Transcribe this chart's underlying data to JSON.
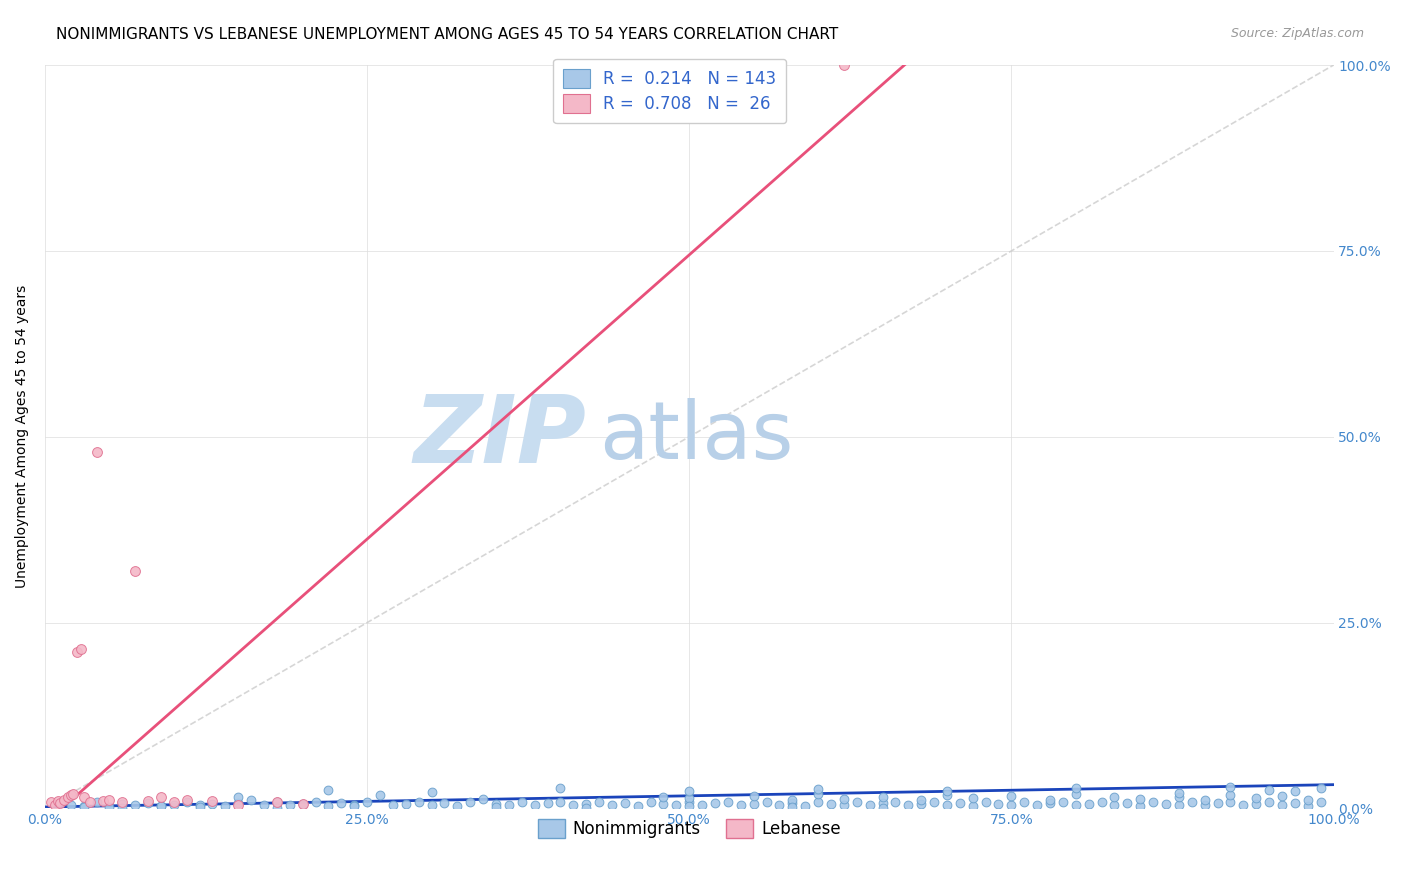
{
  "title": "NONIMMIGRANTS VS LEBANESE UNEMPLOYMENT AMONG AGES 45 TO 54 YEARS CORRELATION CHART",
  "source": "Source: ZipAtlas.com",
  "ylabel": "Unemployment Among Ages 45 to 54 years",
  "xlim": [
    0,
    1.0
  ],
  "ylim": [
    0,
    1.0
  ],
  "xtick_labels": [
    "0.0%",
    "25.0%",
    "50.0%",
    "75.0%",
    "100.0%"
  ],
  "xtick_positions": [
    0.0,
    0.25,
    0.5,
    0.75,
    1.0
  ],
  "ytick_labels_right": [
    "0.0%",
    "25.0%",
    "50.0%",
    "75.0%",
    "100.0%"
  ],
  "ytick_positions": [
    0.0,
    0.25,
    0.5,
    0.75,
    1.0
  ],
  "nonimmigrant_color": "#a8c8e8",
  "nonimmigrant_edge_color": "#6aa0cc",
  "lebanese_color": "#f4b8c8",
  "lebanese_edge_color": "#e07090",
  "nonimmigrant_R": 0.214,
  "nonimmigrant_N": 143,
  "lebanese_R": 0.708,
  "lebanese_N": 26,
  "nonimmigrant_line_color": "#1a44bb",
  "lebanese_line_color": "#e8507a",
  "diagonal_line_color": "#cccccc",
  "legend_label_nonimmigrant": "Nonimmigrants",
  "legend_label_lebanese": "Lebanese",
  "watermark_zip": "ZIP",
  "watermark_atlas": "atlas",
  "watermark_color_zip": "#c8ddf0",
  "watermark_color_atlas": "#b8d0e8",
  "background_color": "#ffffff",
  "title_fontsize": 11,
  "source_fontsize": 9,
  "legend_fontsize": 12,
  "axis_label_fontsize": 10,
  "tick_fontsize": 10,
  "tick_color": "#4488cc",
  "ni_scatter": {
    "x": [
      0.02,
      0.03,
      0.04,
      0.05,
      0.06,
      0.07,
      0.08,
      0.09,
      0.1,
      0.11,
      0.12,
      0.13,
      0.14,
      0.15,
      0.17,
      0.18,
      0.19,
      0.2,
      0.21,
      0.22,
      0.23,
      0.24,
      0.25,
      0.27,
      0.28,
      0.29,
      0.3,
      0.31,
      0.32,
      0.33,
      0.35,
      0.36,
      0.37,
      0.38,
      0.39,
      0.4,
      0.41,
      0.42,
      0.43,
      0.44,
      0.45,
      0.46,
      0.47,
      0.48,
      0.49,
      0.5,
      0.51,
      0.52,
      0.53,
      0.54,
      0.55,
      0.56,
      0.57,
      0.58,
      0.59,
      0.6,
      0.61,
      0.62,
      0.63,
      0.64,
      0.65,
      0.66,
      0.67,
      0.68,
      0.69,
      0.7,
      0.71,
      0.72,
      0.73,
      0.74,
      0.75,
      0.76,
      0.77,
      0.78,
      0.79,
      0.8,
      0.81,
      0.82,
      0.83,
      0.84,
      0.85,
      0.86,
      0.87,
      0.88,
      0.89,
      0.9,
      0.91,
      0.92,
      0.93,
      0.94,
      0.95,
      0.96,
      0.97,
      0.98,
      0.99,
      0.15,
      0.16,
      0.26,
      0.34,
      0.48,
      0.5,
      0.55,
      0.58,
      0.6,
      0.62,
      0.65,
      0.68,
      0.7,
      0.72,
      0.75,
      0.78,
      0.8,
      0.83,
      0.85,
      0.88,
      0.9,
      0.92,
      0.94,
      0.96,
      0.98,
      0.22,
      0.3,
      0.4,
      0.5,
      0.6,
      0.7,
      0.8,
      0.88,
      0.92,
      0.95,
      0.97,
      0.99,
      0.03,
      0.06,
      0.09,
      0.12,
      0.18,
      0.24,
      0.35,
      0.42,
      0.5,
      0.58,
      0.65
    ],
    "y": [
      0.005,
      0.003,
      0.008,
      0.002,
      0.006,
      0.004,
      0.007,
      0.003,
      0.005,
      0.008,
      0.004,
      0.006,
      0.003,
      0.007,
      0.005,
      0.009,
      0.004,
      0.006,
      0.008,
      0.003,
      0.007,
      0.005,
      0.009,
      0.004,
      0.006,
      0.008,
      0.005,
      0.007,
      0.003,
      0.009,
      0.006,
      0.004,
      0.008,
      0.005,
      0.007,
      0.009,
      0.004,
      0.006,
      0.008,
      0.005,
      0.007,
      0.003,
      0.009,
      0.006,
      0.004,
      0.008,
      0.005,
      0.007,
      0.009,
      0.004,
      0.006,
      0.008,
      0.005,
      0.007,
      0.003,
      0.009,
      0.006,
      0.004,
      0.008,
      0.005,
      0.007,
      0.009,
      0.004,
      0.006,
      0.008,
      0.005,
      0.007,
      0.003,
      0.009,
      0.006,
      0.004,
      0.008,
      0.005,
      0.007,
      0.009,
      0.004,
      0.006,
      0.008,
      0.005,
      0.007,
      0.003,
      0.009,
      0.006,
      0.004,
      0.008,
      0.005,
      0.007,
      0.009,
      0.004,
      0.006,
      0.008,
      0.005,
      0.007,
      0.003,
      0.009,
      0.015,
      0.012,
      0.018,
      0.013,
      0.016,
      0.014,
      0.017,
      0.011,
      0.019,
      0.013,
      0.016,
      0.012,
      0.018,
      0.014,
      0.017,
      0.011,
      0.019,
      0.015,
      0.013,
      0.016,
      0.012,
      0.018,
      0.014,
      0.017,
      0.011,
      0.025,
      0.022,
      0.028,
      0.023,
      0.026,
      0.024,
      0.027,
      0.021,
      0.029,
      0.025,
      0.023,
      0.028,
      0.002,
      0.001,
      0.003,
      0.002,
      0.001,
      0.003,
      0.002,
      0.001,
      0.003,
      0.002,
      0.001
    ]
  },
  "lb_scatter": {
    "x": [
      0.005,
      0.008,
      0.01,
      0.012,
      0.015,
      0.018,
      0.02,
      0.022,
      0.025,
      0.028,
      0.03,
      0.035,
      0.04,
      0.045,
      0.05,
      0.06,
      0.07,
      0.08,
      0.09,
      0.1,
      0.11,
      0.13,
      0.15,
      0.18,
      0.2,
      0.62
    ],
    "y": [
      0.008,
      0.005,
      0.01,
      0.007,
      0.012,
      0.015,
      0.018,
      0.02,
      0.21,
      0.215,
      0.015,
      0.008,
      0.48,
      0.01,
      0.012,
      0.008,
      0.32,
      0.01,
      0.015,
      0.008,
      0.012,
      0.01,
      0.005,
      0.008,
      0.006,
      1.0
    ]
  },
  "ni_line": {
    "x0": 0.0,
    "x1": 1.0,
    "y0": 0.002,
    "y1": 0.032
  },
  "lb_line": {
    "x0": 0.0,
    "x1": 0.68,
    "y0": -0.02,
    "y1": 1.02
  }
}
